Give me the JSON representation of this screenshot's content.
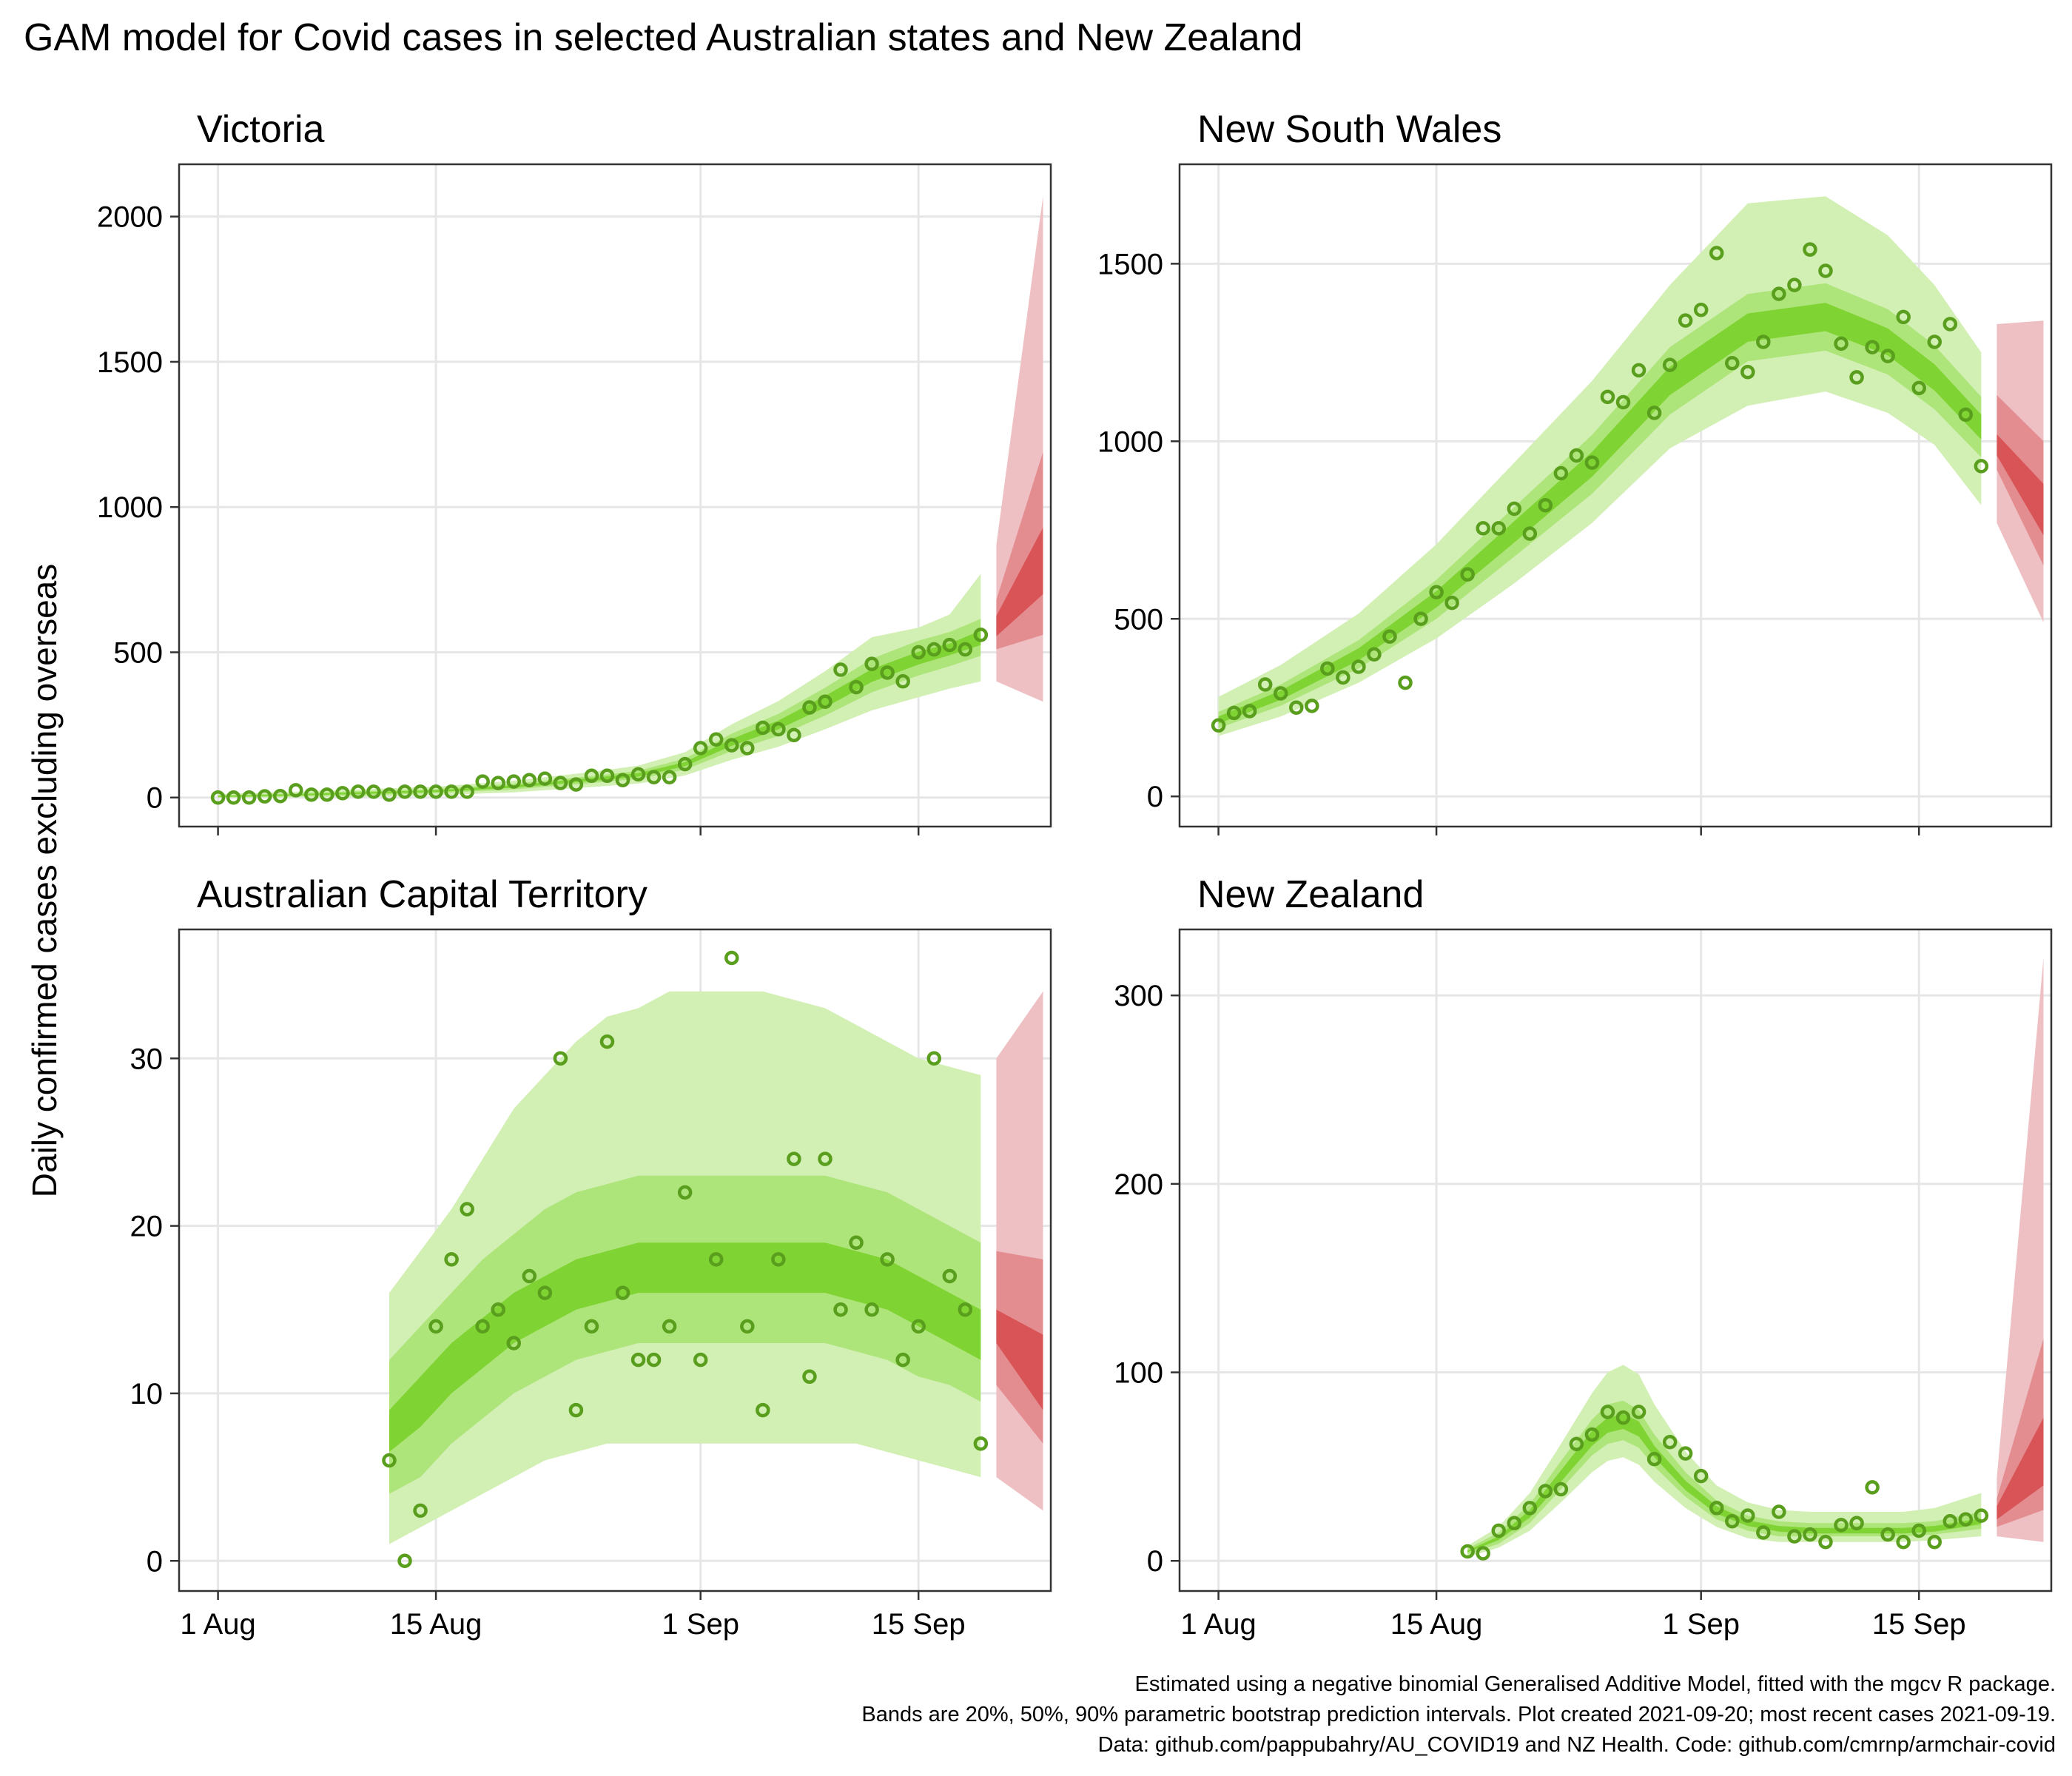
{
  "title": "GAM model for Covid cases in selected Australian states and New Zealand",
  "ylabel": "Daily confirmed cases excluding overseas",
  "caption": [
    "Estimated using a negative binomial Generalised Additive Model, fitted with the mgcv R package.",
    "Bands are 20%, 50%, 90% parametric bootstrap prediction intervals. Plot created 2021-09-20; most recent cases 2021-09-19.",
    "Data: github.com/pappubahry/AU_COVID19 and NZ Health. Code: github.com/cmrnp/armchair-covid"
  ],
  "colors": {
    "observed_points": "#5a9e1e",
    "fit_band_90": "#d2efb4",
    "fit_band_50": "#aee57a",
    "fit_band_20": "#7fd332",
    "forecast_band_90": "#eec0c3",
    "forecast_band_50": "#e38d90",
    "forecast_band_20": "#d95457",
    "gridlines": "#e6e6e6",
    "panel_border": "#333333"
  },
  "chart_data": [
    {
      "type": "scatter",
      "title": "Victoria",
      "x_is_day_of_august": true,
      "xticks": [
        1,
        15,
        32,
        46
      ],
      "xtick_labels": [
        "1 Aug",
        "15 Aug",
        "1 Sep",
        "15 Sep"
      ],
      "xlim": [
        -1.5,
        54.5
      ],
      "yticks": [
        0,
        500,
        1000,
        1500,
        2000
      ],
      "ylim": [
        -100,
        2180
      ],
      "observed": {
        "x": [
          1,
          2,
          3,
          4,
          5,
          6,
          7,
          8,
          9,
          10,
          11,
          12,
          13,
          14,
          15,
          16,
          17,
          18,
          19,
          20,
          21,
          22,
          23,
          24,
          25,
          26,
          27,
          28,
          29,
          30,
          31,
          32,
          33,
          34,
          35,
          36,
          37,
          38,
          39,
          40,
          41,
          42,
          43,
          44,
          45,
          46,
          47,
          48,
          49,
          50
        ],
        "y": [
          0,
          0,
          0,
          4,
          5,
          25,
          10,
          10,
          15,
          20,
          20,
          10,
          20,
          20,
          20,
          20,
          20,
          55,
          50,
          55,
          60,
          65,
          50,
          45,
          75,
          75,
          60,
          80,
          70,
          70,
          115,
          170,
          200,
          180,
          170,
          240,
          235,
          215,
          310,
          330,
          440,
          380,
          460,
          430,
          400,
          500,
          510,
          525,
          510,
          560
        ]
      },
      "fit": {
        "x": [
          1,
          5,
          10,
          15,
          20,
          25,
          28,
          31,
          34,
          37,
          40,
          43,
          46,
          48,
          50
        ],
        "median": [
          4,
          8,
          15,
          22,
          38,
          62,
          78,
          115,
          190,
          250,
          330,
          420,
          480,
          510,
          550
        ],
        "lower20": [
          2,
          6,
          12,
          19,
          34,
          57,
          72,
          108,
          178,
          235,
          310,
          398,
          458,
          490,
          525
        ],
        "upper20": [
          6,
          10,
          18,
          25,
          42,
          67,
          84,
          122,
          202,
          265,
          350,
          442,
          502,
          530,
          575
        ],
        "lower50": [
          0,
          3,
          8,
          15,
          28,
          50,
          64,
          96,
          160,
          212,
          282,
          362,
          420,
          452,
          488
        ],
        "upper50": [
          8,
          13,
          22,
          29,
          48,
          74,
          92,
          134,
          220,
          288,
          378,
          478,
          540,
          570,
          615
        ],
        "lower90": [
          0,
          0,
          2,
          8,
          18,
          36,
          48,
          76,
          130,
          175,
          235,
          300,
          345,
          375,
          400
        ],
        "upper90": [
          12,
          18,
          28,
          37,
          58,
          88,
          110,
          156,
          252,
          332,
          435,
          552,
          585,
          630,
          770
        ]
      },
      "forecast": {
        "x": [
          51,
          54
        ],
        "median": [
          590,
          780
        ],
        "lower20": [
          555,
          700
        ],
        "upper20": [
          625,
          930
        ],
        "lower50": [
          510,
          560
        ],
        "upper50": [
          680,
          1190
        ],
        "lower90": [
          400,
          330
        ],
        "upper90": [
          870,
          2070
        ]
      }
    },
    {
      "type": "scatter",
      "title": "New South Wales",
      "x_is_day_of_august": true,
      "xticks": [
        1,
        15,
        32,
        46
      ],
      "xtick_labels": [
        "1 Aug",
        "15 Aug",
        "1 Sep",
        "15 Sep"
      ],
      "xlim": [
        -1.5,
        54.5
      ],
      "yticks": [
        0,
        500,
        1000,
        1500
      ],
      "ylim": [
        -85,
        1780
      ],
      "observed": {
        "x": [
          1,
          2,
          3,
          4,
          5,
          6,
          7,
          8,
          9,
          10,
          11,
          12,
          13,
          14,
          15,
          16,
          17,
          18,
          19,
          20,
          21,
          22,
          23,
          24,
          25,
          26,
          27,
          28,
          29,
          30,
          31,
          32,
          33,
          34,
          35,
          36,
          37,
          38,
          39,
          40,
          41,
          42,
          43,
          44,
          45,
          46,
          47,
          48,
          49,
          50
        ],
        "y": [
          200,
          235,
          240,
          315,
          290,
          250,
          255,
          360,
          335,
          365,
          400,
          450,
          320,
          500,
          575,
          545,
          625,
          755,
          755,
          810,
          740,
          820,
          910,
          960,
          940,
          1125,
          1110,
          1200,
          1080,
          1215,
          1340,
          1370,
          1530,
          1220,
          1195,
          1280,
          1415,
          1440,
          1540,
          1480,
          1275,
          1180,
          1265,
          1240,
          1350,
          1150,
          1280,
          1330,
          1075,
          930
        ]
      },
      "fit": {
        "x": [
          1,
          5,
          10,
          15,
          20,
          25,
          30,
          35,
          40,
          44,
          47,
          50
        ],
        "median": [
          215,
          285,
          400,
          555,
          745,
          935,
          1170,
          1320,
          1350,
          1280,
          1180,
          1040
        ],
        "lower20": [
          205,
          272,
          383,
          532,
          715,
          900,
          1130,
          1280,
          1310,
          1242,
          1143,
          1005
        ],
        "upper20": [
          225,
          298,
          417,
          578,
          775,
          970,
          1210,
          1360,
          1390,
          1318,
          1217,
          1075
        ],
        "lower50": [
          192,
          255,
          360,
          500,
          675,
          852,
          1075,
          1225,
          1255,
          1188,
          1090,
          955
        ],
        "upper50": [
          238,
          315,
          440,
          610,
          815,
          1018,
          1265,
          1415,
          1445,
          1372,
          1270,
          1125
        ],
        "lower90": [
          170,
          225,
          320,
          445,
          600,
          770,
          980,
          1100,
          1140,
          1080,
          990,
          820
        ],
        "upper90": [
          280,
          370,
          515,
          710,
          940,
          1170,
          1440,
          1670,
          1690,
          1580,
          1440,
          1250
        ]
      },
      "forecast": {
        "x": [
          51,
          54
        ],
        "median": [
          990,
          800
        ],
        "lower20": [
          960,
          735
        ],
        "upper20": [
          1020,
          880
        ],
        "lower50": [
          920,
          650
        ],
        "upper50": [
          1130,
          1000
        ],
        "lower90": [
          770,
          490
        ],
        "upper90": [
          1330,
          1340
        ]
      }
    },
    {
      "type": "scatter",
      "title": "Australian Capital Territory",
      "x_is_day_of_august": true,
      "xticks": [
        1,
        15,
        32,
        46
      ],
      "xtick_labels": [
        "1 Aug",
        "15 Aug",
        "1 Sep",
        "15 Sep"
      ],
      "xlim": [
        -1.5,
        54.5
      ],
      "yticks": [
        0,
        10,
        20,
        30
      ],
      "ylim": [
        -1.8,
        37.7
      ],
      "observed": {
        "x": [
          12,
          13,
          14,
          15,
          16,
          17,
          18,
          19,
          20,
          21,
          22,
          23,
          24,
          25,
          26,
          27,
          28,
          29,
          30,
          31,
          32,
          33,
          34,
          35,
          36,
          37,
          38,
          39,
          40,
          41,
          42,
          43,
          44,
          45,
          46,
          47,
          48,
          49,
          50
        ],
        "y": [
          6,
          0,
          3,
          14,
          18,
          21,
          14,
          15,
          13,
          17,
          16,
          30,
          9,
          14,
          31,
          16,
          12,
          12,
          14,
          22,
          12,
          18,
          36,
          14,
          9,
          18,
          24,
          11,
          24,
          15,
          19,
          15,
          18,
          12,
          14,
          30,
          17,
          15,
          7
        ]
      },
      "fit": {
        "x": [
          12,
          14,
          16,
          18,
          20,
          22,
          24,
          26,
          28,
          30,
          32,
          34,
          36,
          38,
          40,
          42,
          44,
          46,
          48,
          50
        ],
        "median": [
          7.5,
          9.5,
          11.5,
          13,
          14.5,
          15.5,
          16.5,
          17,
          17.5,
          17.5,
          17.5,
          17.5,
          17.5,
          17.5,
          17.5,
          17,
          16.5,
          15.5,
          14.5,
          13.5
        ],
        "lower20": [
          6.5,
          8,
          10,
          11.5,
          13,
          14,
          15,
          15.5,
          16,
          16,
          16,
          16,
          16,
          16,
          16,
          15.5,
          15,
          14,
          13,
          12
        ],
        "upper20": [
          9,
          11,
          13,
          14.5,
          16,
          17,
          18,
          18.5,
          19,
          19,
          19,
          19,
          19,
          19,
          19,
          18.5,
          18,
          17,
          16,
          15
        ],
        "lower50": [
          4,
          5,
          7,
          8.5,
          10,
          11,
          12,
          12.5,
          13,
          13,
          13,
          13,
          13,
          13,
          13,
          12.5,
          12,
          11,
          10.5,
          9.5
        ],
        "upper50": [
          12,
          14,
          16,
          18,
          19.5,
          21,
          22,
          22.5,
          23,
          23,
          23,
          23,
          23,
          23,
          23,
          22.5,
          22,
          21,
          20,
          19
        ],
        "lower90": [
          1,
          2,
          3,
          4,
          5,
          6,
          6.5,
          7,
          7,
          7,
          7,
          7,
          7,
          7,
          7,
          7,
          6.5,
          6,
          5.5,
          5
        ],
        "upper90": [
          16,
          18.5,
          21,
          24,
          27,
          29,
          31,
          32.5,
          33,
          34,
          34,
          34,
          34,
          33.5,
          33,
          32,
          31,
          30,
          29.5,
          29
        ]
      },
      "forecast": {
        "x": [
          51,
          54
        ],
        "median": [
          14,
          11
        ],
        "lower20": [
          13,
          9
        ],
        "upper20": [
          15,
          13.5
        ],
        "lower50": [
          10.5,
          7
        ],
        "upper50": [
          18.5,
          18
        ],
        "lower90": [
          5,
          3
        ],
        "upper90": [
          30,
          34
        ]
      }
    },
    {
      "type": "scatter",
      "title": "New Zealand",
      "x_is_day_of_august": true,
      "xticks": [
        1,
        15,
        32,
        46
      ],
      "xtick_labels": [
        "1 Aug",
        "15 Aug",
        "1 Sep",
        "15 Sep"
      ],
      "xlim": [
        -1.5,
        54.5
      ],
      "yticks": [
        0,
        100,
        200,
        300
      ],
      "ylim": [
        -16,
        335
      ],
      "observed": {
        "x": [
          17,
          18,
          19,
          20,
          21,
          22,
          23,
          24,
          25,
          26,
          27,
          28,
          29,
          30,
          31,
          32,
          33,
          34,
          35,
          36,
          37,
          38,
          39,
          40,
          41,
          42,
          43,
          44,
          45,
          46,
          47,
          48,
          49,
          50
        ],
        "y": [
          5,
          4,
          16,
          20,
          28,
          37,
          38,
          62,
          67,
          79,
          76,
          79,
          54,
          63,
          57,
          45,
          28,
          21,
          24,
          15,
          26,
          13,
          14,
          10,
          19,
          20,
          39,
          14,
          10,
          16,
          10,
          21,
          22,
          24
        ]
      },
      "fit": {
        "x": [
          17,
          19,
          21,
          23,
          25,
          26,
          27,
          28,
          29,
          31,
          33,
          35,
          37,
          39,
          41,
          43,
          45,
          47,
          50
        ],
        "median": [
          5,
          12,
          25,
          45,
          65,
          72,
          74,
          70,
          58,
          40,
          27,
          20,
          17,
          16,
          16,
          16,
          16,
          17,
          21
        ],
        "lower20": [
          4.5,
          11,
          23,
          42,
          61,
          68,
          70,
          66,
          55,
          37.5,
          25,
          18.5,
          15.5,
          14.5,
          14.5,
          14.5,
          14.5,
          15.5,
          19.5
        ],
        "upper20": [
          5.5,
          13,
          27,
          48,
          69,
          76,
          78,
          74,
          61,
          42.5,
          29,
          21.5,
          18.5,
          17.5,
          17.5,
          17.5,
          17.5,
          18.5,
          22.5
        ],
        "lower50": [
          3.5,
          9,
          20,
          38,
          56,
          62,
          64,
          60,
          50,
          34,
          22,
          16,
          13,
          13,
          13,
          13,
          13,
          14,
          17
        ],
        "upper50": [
          6.5,
          15,
          30,
          53,
          75,
          83,
          85,
          80,
          67,
          47,
          32,
          24,
          21,
          20,
          20,
          20,
          20,
          21,
          26
        ],
        "lower90": [
          2,
          7,
          16,
          31,
          47,
          53,
          55,
          51,
          42,
          28,
          18,
          12,
          10,
          10,
          10,
          10,
          10,
          11,
          13
        ],
        "upper90": [
          8,
          18,
          36,
          62,
          89,
          100,
          104,
          99,
          83,
          58,
          40,
          31,
          27,
          26,
          26,
          26,
          26,
          28,
          36
        ]
      },
      "forecast": {
        "x": [
          51,
          54
        ],
        "median": [
          25,
          55
        ],
        "lower20": [
          22,
          40
        ],
        "upper20": [
          29,
          76
        ],
        "lower50": [
          18,
          27
        ],
        "upper50": [
          33,
          118
        ],
        "lower90": [
          13,
          10
        ],
        "upper90": [
          44,
          320
        ]
      }
    }
  ]
}
